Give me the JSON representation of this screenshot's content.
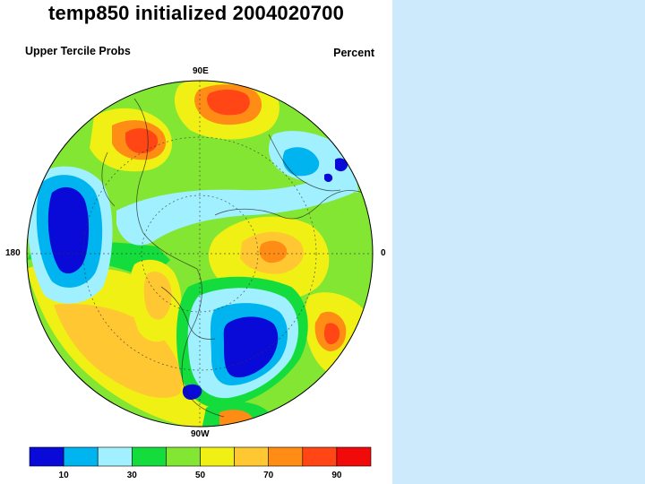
{
  "title": "temp850 initialized 2004020700",
  "subtitle_left": "Upper Tercile Probs",
  "subtitle_right": "Percent",
  "longitude_labels": {
    "top": "90E",
    "left": "180",
    "right": "0",
    "bottom": "90W"
  },
  "colorbar": {
    "colors": [
      "#0a0ad8",
      "#00b4f0",
      "#a0f0ff",
      "#14dc3c",
      "#82e632",
      "#f0f014",
      "#ffc832",
      "#ff8c14",
      "#ff4614",
      "#f00a0a"
    ],
    "tick_labels": [
      "10",
      "30",
      "50",
      "70",
      "90"
    ]
  },
  "map_colors": {
    "ocean_ring": "#ffffff",
    "disk_base": "#82e632",
    "dark_blue": "#0a0ad8",
    "mid_blue": "#00b4f0",
    "light_blue": "#a0f0ff",
    "green": "#14dc3c",
    "light_green": "#82e632",
    "yellow": "#f0f014",
    "light_orange": "#ffc832",
    "orange": "#ff8c14",
    "red": "#ff4614"
  }
}
